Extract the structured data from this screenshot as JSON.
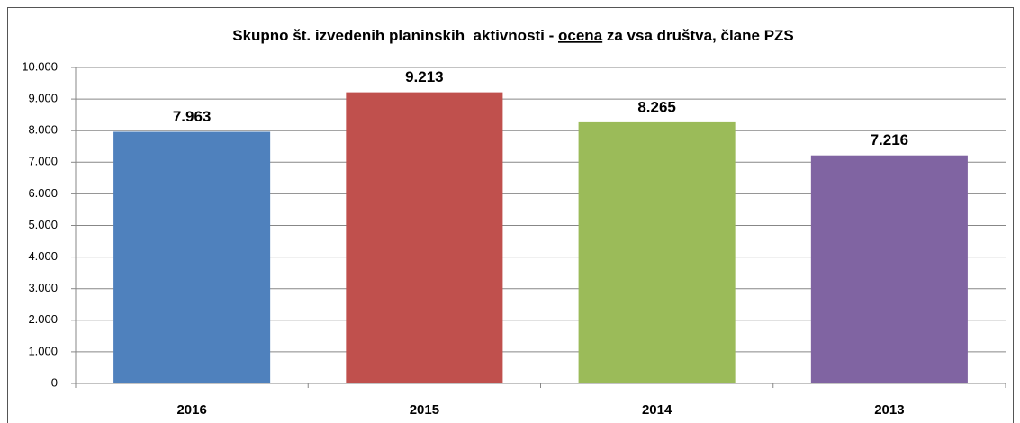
{
  "chart_data": {
    "type": "bar",
    "title": [
      "Skupno št. izvedenih planinskih  aktivnosti - ",
      "ocena",
      " za vsa društva, člane PZS"
    ],
    "categories": [
      "2016",
      "2015",
      "2014",
      "2013"
    ],
    "values": [
      7963,
      9213,
      8265,
      7216
    ],
    "value_labels": [
      "7.963",
      "9.213",
      "8.265",
      "7.216"
    ],
    "colors": [
      "#4f81bd",
      "#c0504d",
      "#9bbb59",
      "#8064a2"
    ],
    "ylim": [
      0,
      10000
    ],
    "yticks": [
      0,
      {
        "value": 1000,
        "label": "1.000"
      },
      {
        "value": 2000,
        "label": "2.000"
      },
      {
        "value": 3000,
        "label": "3.000"
      },
      {
        "value": 4000,
        "label": "4.000"
      },
      {
        "value": 5000,
        "label": "5.000"
      },
      {
        "value": 6000,
        "label": "6.000"
      },
      {
        "value": 7000,
        "label": "7.000"
      },
      {
        "value": 8000,
        "label": "8.000"
      },
      {
        "value": 9000,
        "label": "9.000"
      },
      {
        "value": 10000,
        "label": "10.000"
      }
    ],
    "grid": true
  }
}
